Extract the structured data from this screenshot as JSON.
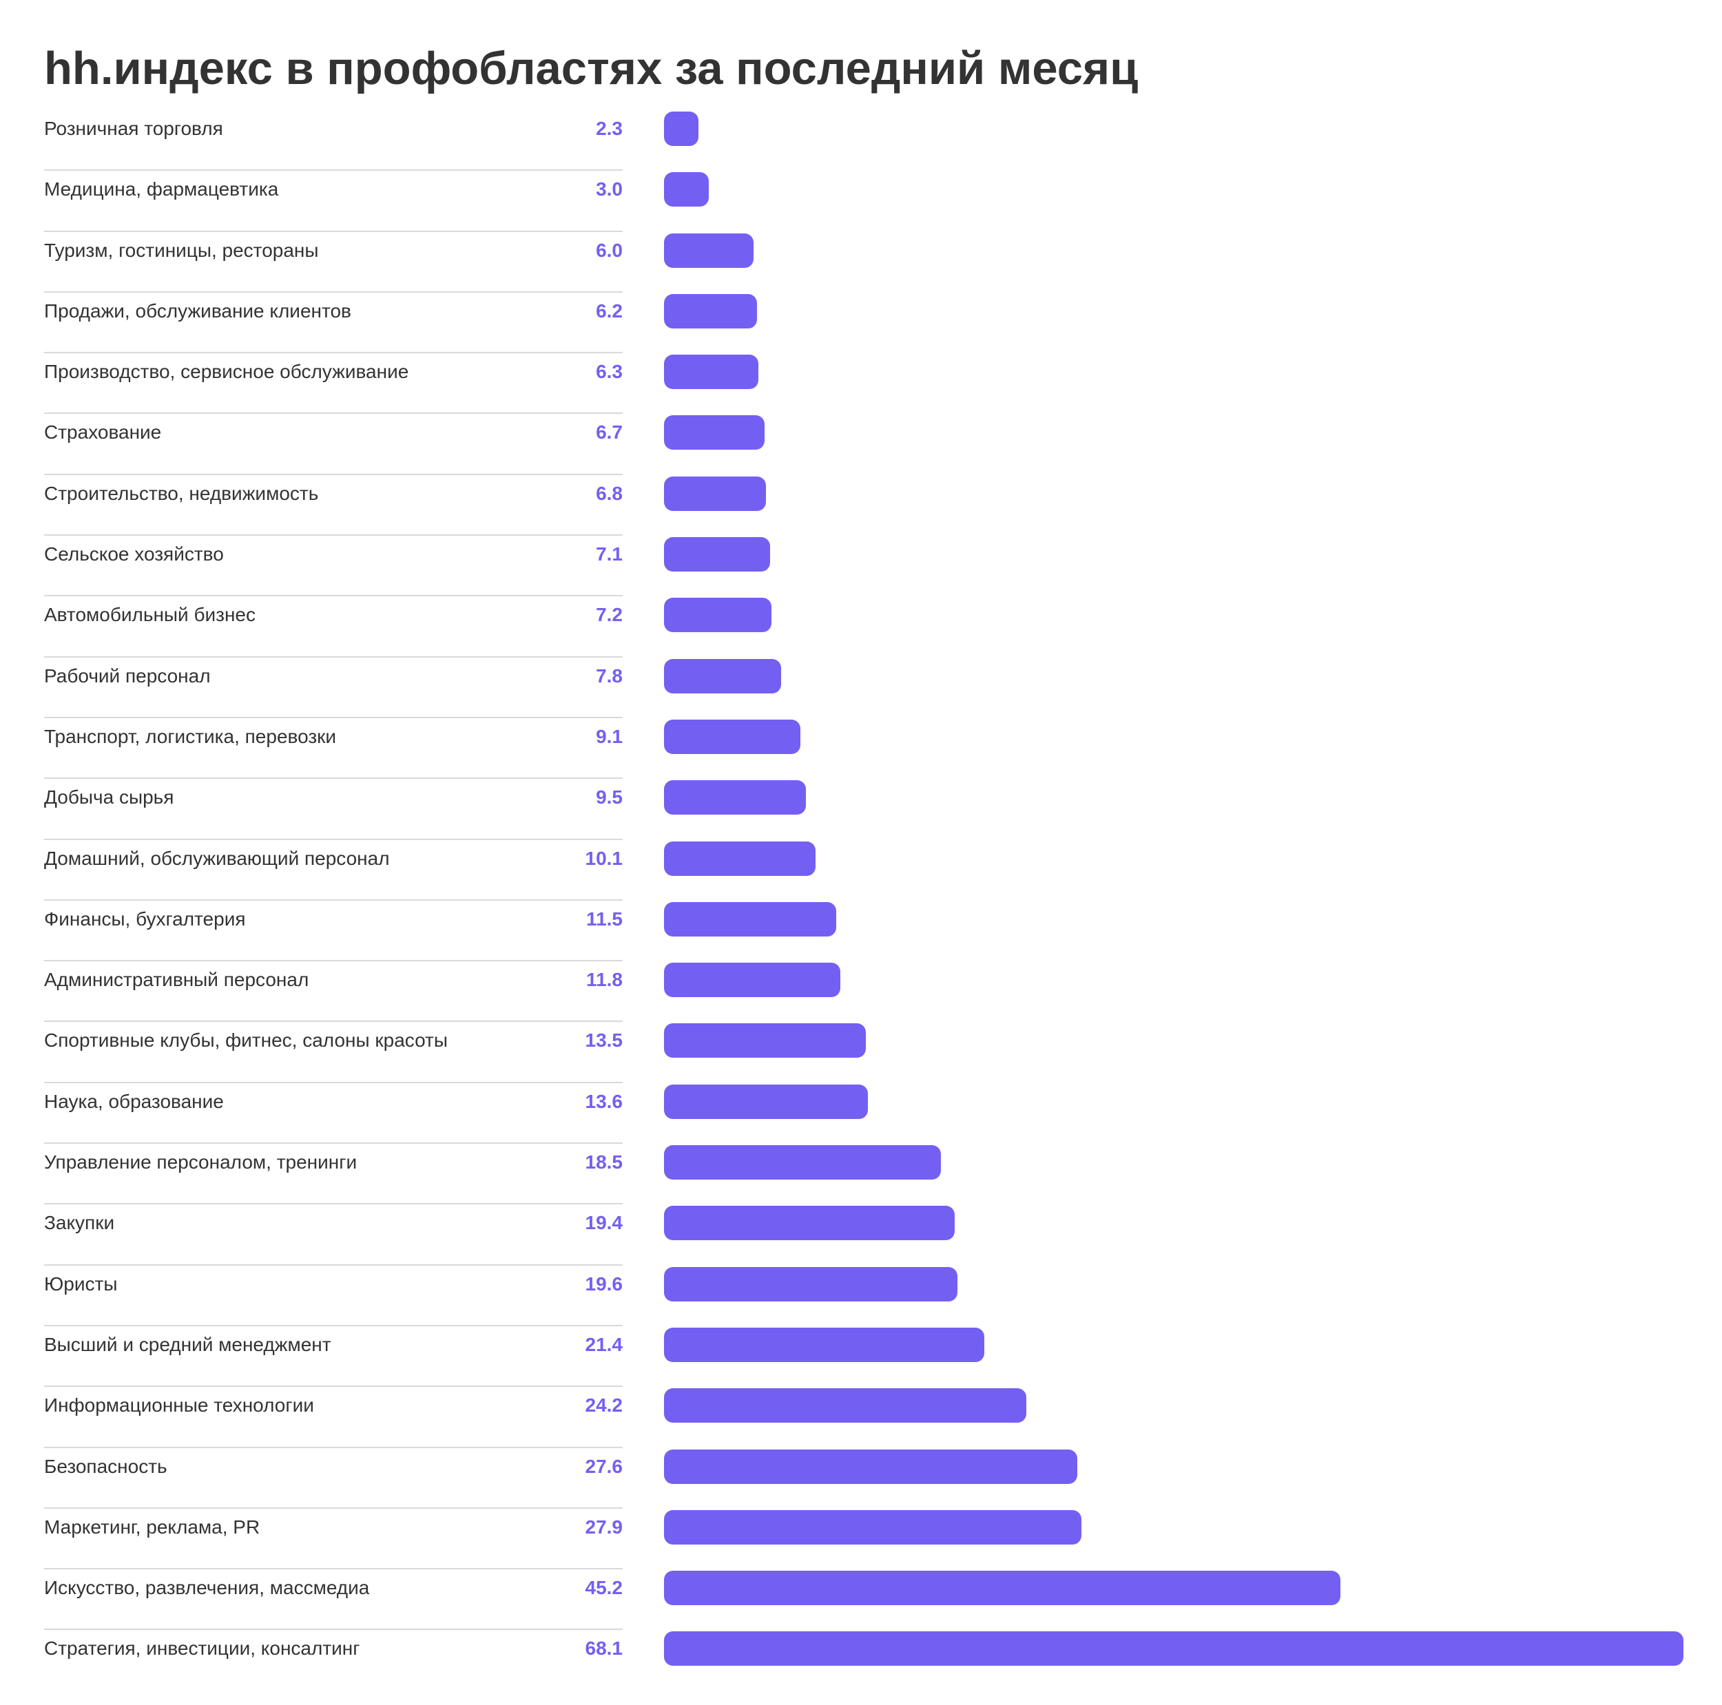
{
  "chart_data": {
    "type": "bar",
    "orientation": "horizontal",
    "title": "hh.индекс в профобластях за последний месяц",
    "xlabel": "",
    "ylabel": "",
    "xlim": [
      0,
      68.1
    ],
    "grid": false,
    "colors": {
      "bar": "#7360F2",
      "value_text": "#7360F2",
      "text": "#333333",
      "divider": "#D9D9D9"
    },
    "categories": [
      "Розничная торговля",
      "Медицина, фармацевтика",
      "Туризм, гостиницы, рестораны",
      "Продажи, обслуживание клиентов",
      "Производство, сервисное обслуживание",
      "Страхование",
      "Строительство, недвижимость",
      "Сельское хозяйство",
      "Автомобильный бизнес",
      "Рабочий персонал",
      "Транспорт, логистика, перевозки",
      "Добыча сырья",
      "Домашний, обслуживающий персонал",
      "Финансы, бухгалтерия",
      "Административный персонал",
      "Спортивные клубы, фитнес, салоны красоты",
      "Наука, образование",
      "Управление персоналом, тренинги",
      "Закупки",
      "Юристы",
      "Высший и средний менеджмент",
      "Информационные технологии",
      "Безопасность",
      "Маркетинг, реклама, PR",
      "Искусство, развлечения, массмедиа",
      "Стратегия, инвестиции, консалтинг"
    ],
    "values": [
      2.3,
      3.0,
      6.0,
      6.2,
      6.3,
      6.7,
      6.8,
      7.1,
      7.2,
      7.8,
      9.1,
      9.5,
      10.1,
      11.5,
      11.8,
      13.5,
      13.6,
      18.5,
      19.4,
      19.6,
      21.4,
      24.2,
      27.6,
      27.9,
      45.2,
      68.1
    ],
    "value_labels": [
      "2.3",
      "3.0",
      "6.0",
      "6.2",
      "6.3",
      "6.7",
      "6.8",
      "7.1",
      "7.2",
      "7.8",
      "9.1",
      "9.5",
      "10.1",
      "11.5",
      "11.8",
      "13.5",
      "13.6",
      "18.5",
      "19.4",
      "19.6",
      "21.4",
      "24.2",
      "27.6",
      "27.9",
      "45.2",
      "68.1"
    ]
  }
}
